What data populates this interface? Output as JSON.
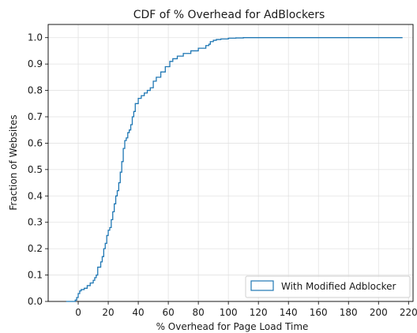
{
  "chart_data": {
    "type": "line",
    "title": "CDF of % Overhead for AdBlockers",
    "xlabel": "% Overhead for Page Load Time",
    "ylabel": "Fraction of Websites",
    "xlim": [
      -20,
      223
    ],
    "ylim": [
      0,
      1.05
    ],
    "xticks": [
      0,
      20,
      40,
      60,
      80,
      100,
      120,
      140,
      160,
      180,
      200,
      220
    ],
    "yticks": [
      0.0,
      0.1,
      0.2,
      0.3,
      0.4,
      0.5,
      0.6,
      0.7,
      0.8,
      0.9,
      1.0
    ],
    "grid": true,
    "legend_position": "bottom-right",
    "series": [
      {
        "name": "With Modified Adblocker",
        "color": "#1f77b4",
        "x": [
          -8,
          -2,
          -1,
          0,
          1,
          2,
          4,
          6,
          8,
          10,
          11,
          12,
          13,
          15,
          16,
          17,
          18,
          19,
          20,
          21,
          22,
          23,
          24,
          25,
          26,
          27,
          28,
          29,
          30,
          31,
          32,
          33,
          34,
          35,
          36,
          37,
          38,
          40,
          42,
          44,
          46,
          48,
          50,
          52,
          55,
          58,
          61,
          63,
          66,
          70,
          75,
          80,
          85,
          87,
          88,
          90,
          92,
          95,
          100,
          105,
          110,
          150,
          200,
          216
        ],
        "y": [
          0.0,
          0.005,
          0.015,
          0.03,
          0.04,
          0.045,
          0.05,
          0.06,
          0.07,
          0.08,
          0.09,
          0.1,
          0.13,
          0.15,
          0.17,
          0.2,
          0.22,
          0.25,
          0.27,
          0.28,
          0.31,
          0.34,
          0.37,
          0.4,
          0.42,
          0.45,
          0.49,
          0.53,
          0.58,
          0.61,
          0.62,
          0.64,
          0.65,
          0.67,
          0.7,
          0.72,
          0.75,
          0.77,
          0.78,
          0.79,
          0.8,
          0.81,
          0.835,
          0.85,
          0.87,
          0.89,
          0.91,
          0.92,
          0.93,
          0.94,
          0.95,
          0.96,
          0.97,
          0.975,
          0.985,
          0.99,
          0.993,
          0.995,
          0.998,
          0.999,
          1.0,
          1.0,
          1.0,
          1.0
        ]
      }
    ]
  }
}
